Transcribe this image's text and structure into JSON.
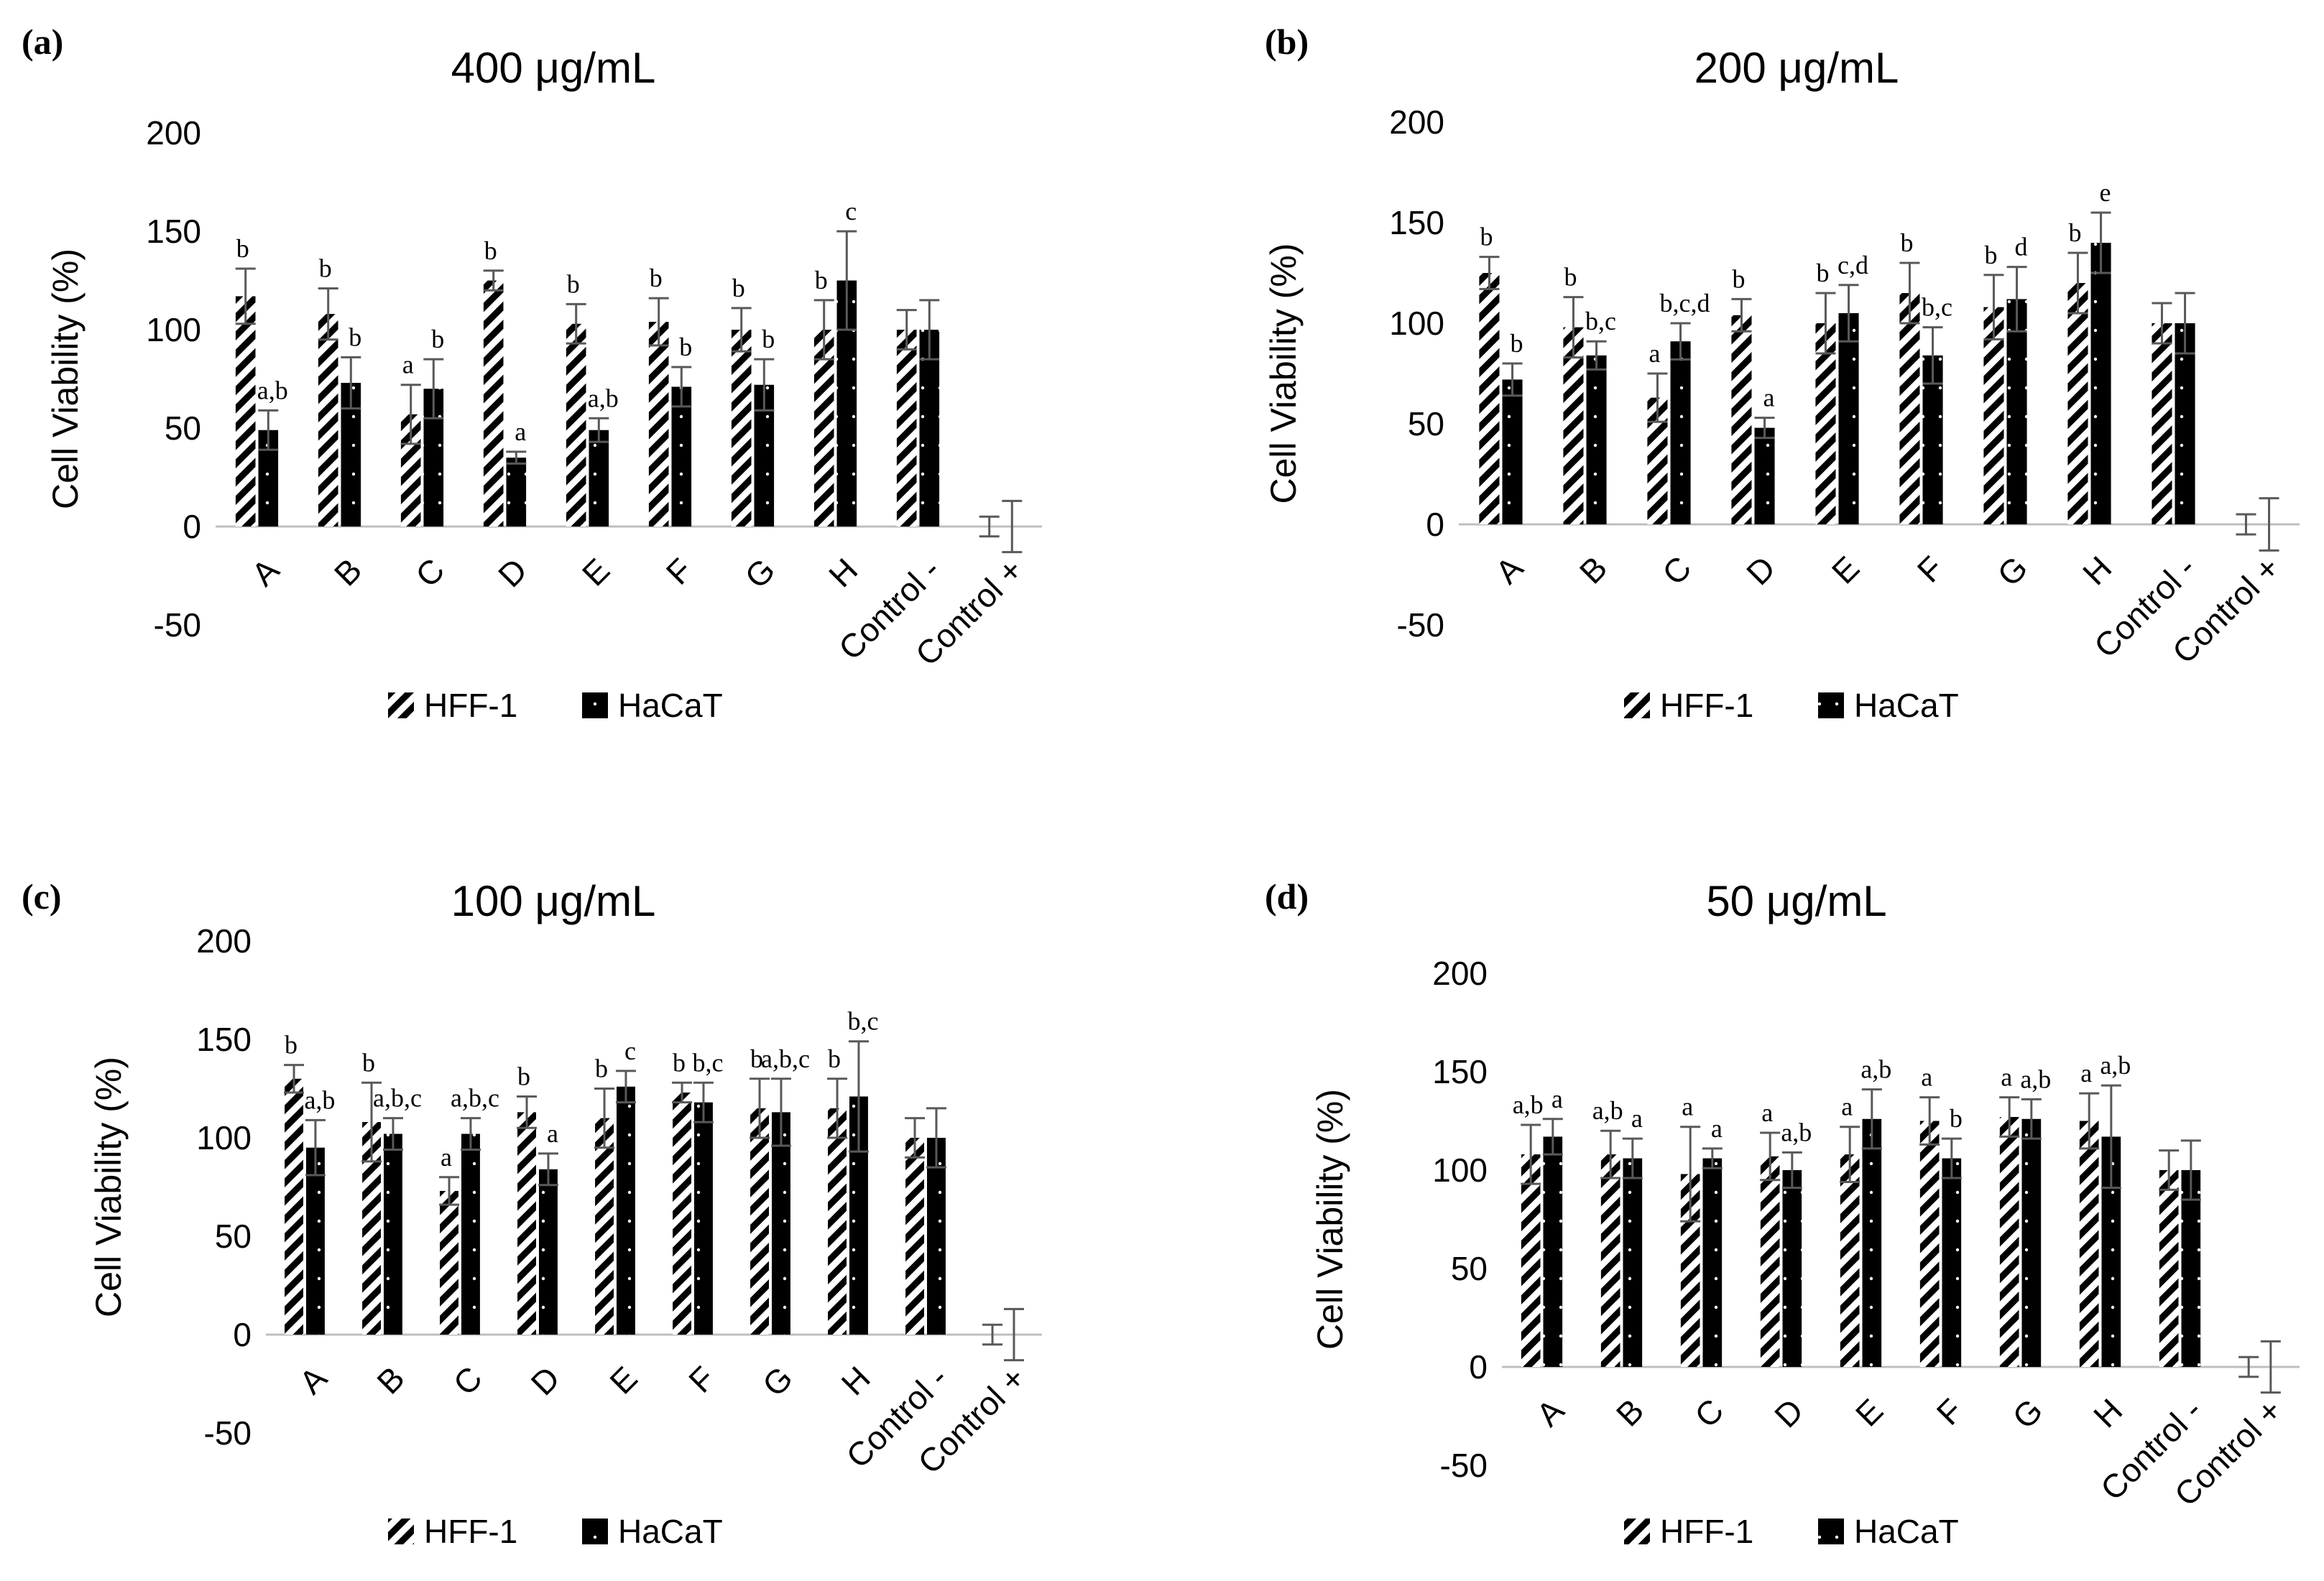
{
  "colors": {
    "bar_fill": "#000000",
    "hatch_bg": "#ffffff",
    "axis": "#bfbfbf",
    "error_bar": "#595959",
    "text": "#000000"
  },
  "chart_data": [
    {
      "panel": "(a)",
      "type": "bar",
      "title": "400 μg/mL",
      "ylabel": "Cell Viability (%)",
      "ylim": [
        -50,
        200
      ],
      "yticks": [
        "200",
        "150",
        "100",
        "50",
        "0",
        "-50"
      ],
      "categories": [
        "A",
        "B",
        "C",
        "D",
        "E",
        "F",
        "G",
        "H",
        "Control -",
        "Control +"
      ],
      "legend": [
        "HFF-1",
        "HaCaT"
      ],
      "series": [
        {
          "name": "HFF-1",
          "values": [
            117,
            108,
            57,
            125,
            103,
            104,
            100,
            100,
            100,
            0
          ],
          "errors": [
            14,
            13,
            15,
            5,
            10,
            12,
            11,
            15,
            10,
            5
          ],
          "labels": [
            "b",
            "b",
            "a",
            "b",
            "b",
            "b",
            "b",
            "b",
            "",
            ""
          ]
        },
        {
          "name": "HaCaT",
          "values": [
            49,
            73,
            70,
            35,
            49,
            71,
            72,
            125,
            100,
            0
          ],
          "errors": [
            10,
            13,
            15,
            3,
            6,
            10,
            13,
            25,
            15,
            13
          ],
          "labels": [
            "a,b",
            "b",
            "b",
            "a",
            "a,b",
            "b",
            "b",
            "c",
            "",
            ""
          ]
        }
      ]
    },
    {
      "panel": "(b)",
      "type": "bar",
      "title": "200 μg/mL",
      "ylabel": "Cell Viability (%)",
      "ylim": [
        -50,
        200
      ],
      "yticks": [
        "200",
        "150",
        "100",
        "50",
        "0",
        "-50"
      ],
      "categories": [
        "A",
        "B",
        "C",
        "D",
        "E",
        "F",
        "G",
        "H",
        "Control -",
        "Control +"
      ],
      "legend": [
        "HFF-1",
        "HaCaT"
      ],
      "series": [
        {
          "name": "HFF-1",
          "values": [
            125,
            98,
            63,
            104,
            100,
            115,
            108,
            120,
            100,
            0
          ],
          "errors": [
            8,
            15,
            12,
            8,
            15,
            15,
            16,
            15,
            10,
            5
          ],
          "labels": [
            "b",
            "b",
            "a",
            "b",
            "b",
            "b",
            "b",
            "b",
            "",
            ""
          ]
        },
        {
          "name": "HaCaT",
          "values": [
            72,
            84,
            91,
            48,
            105,
            84,
            112,
            140,
            100,
            0
          ],
          "errors": [
            8,
            7,
            9,
            5,
            14,
            14,
            16,
            15,
            15,
            13
          ],
          "labels": [
            "b",
            "b,c",
            "b,c,d",
            "a",
            "c,d",
            "b,c",
            "d",
            "e",
            "",
            ""
          ]
        }
      ]
    },
    {
      "panel": "(c)",
      "type": "bar",
      "title": "100 μg/mL",
      "ylabel": "Cell Viability (%)",
      "ylim": [
        -50,
        200
      ],
      "yticks": [
        "200",
        "150",
        "100",
        "50",
        "0",
        "-50"
      ],
      "categories": [
        "A",
        "B",
        "C",
        "D",
        "E",
        "F",
        "G",
        "H",
        "Control -",
        "Control +"
      ],
      "legend": [
        "HFF-1",
        "HaCaT"
      ],
      "series": [
        {
          "name": "HFF-1",
          "values": [
            130,
            108,
            73,
            113,
            110,
            123,
            115,
            115,
            100,
            0
          ],
          "errors": [
            7,
            20,
            7,
            8,
            15,
            5,
            15,
            15,
            10,
            5
          ],
          "labels": [
            "b",
            "b",
            "a",
            "b",
            "b",
            "b",
            "b",
            "b",
            "",
            ""
          ]
        },
        {
          "name": "HaCaT",
          "values": [
            95,
            102,
            102,
            84,
            126,
            118,
            113,
            121,
            100,
            0
          ],
          "errors": [
            14,
            8,
            8,
            8,
            8,
            10,
            17,
            28,
            15,
            13
          ],
          "labels": [
            "a,b",
            "a,b,c",
            "a,b,c",
            "a",
            "c",
            "b,c",
            "a,b,c",
            "b,c",
            "",
            ""
          ]
        }
      ]
    },
    {
      "panel": "(d)",
      "type": "bar",
      "title": "50 μg/mL",
      "ylabel": "Cell Viability (%)",
      "ylim": [
        -50,
        200
      ],
      "yticks": [
        "200",
        "150",
        "100",
        "50",
        "0",
        "-50"
      ],
      "categories": [
        "A",
        "B",
        "C",
        "D",
        "E",
        "F",
        "G",
        "H",
        "Control -",
        "Control +"
      ],
      "legend": [
        "HFF-1",
        "HaCaT"
      ],
      "series": [
        {
          "name": "HFF-1",
          "values": [
            108,
            108,
            98,
            107,
            108,
            125,
            127,
            125,
            100,
            0
          ],
          "errors": [
            15,
            12,
            24,
            12,
            14,
            12,
            10,
            14,
            10,
            5
          ],
          "labels": [
            "a,b",
            "a,b",
            "a",
            "a",
            "a",
            "a",
            "a",
            "a",
            "",
            ""
          ]
        },
        {
          "name": "HaCaT",
          "values": [
            117,
            106,
            106,
            100,
            126,
            106,
            126,
            117,
            100,
            0
          ],
          "errors": [
            9,
            10,
            5,
            9,
            15,
            10,
            10,
            26,
            15,
            13
          ],
          "labels": [
            "a",
            "a",
            "a",
            "a,b",
            "a,b",
            "b",
            "a,b",
            "a,b",
            "",
            ""
          ]
        }
      ]
    }
  ]
}
